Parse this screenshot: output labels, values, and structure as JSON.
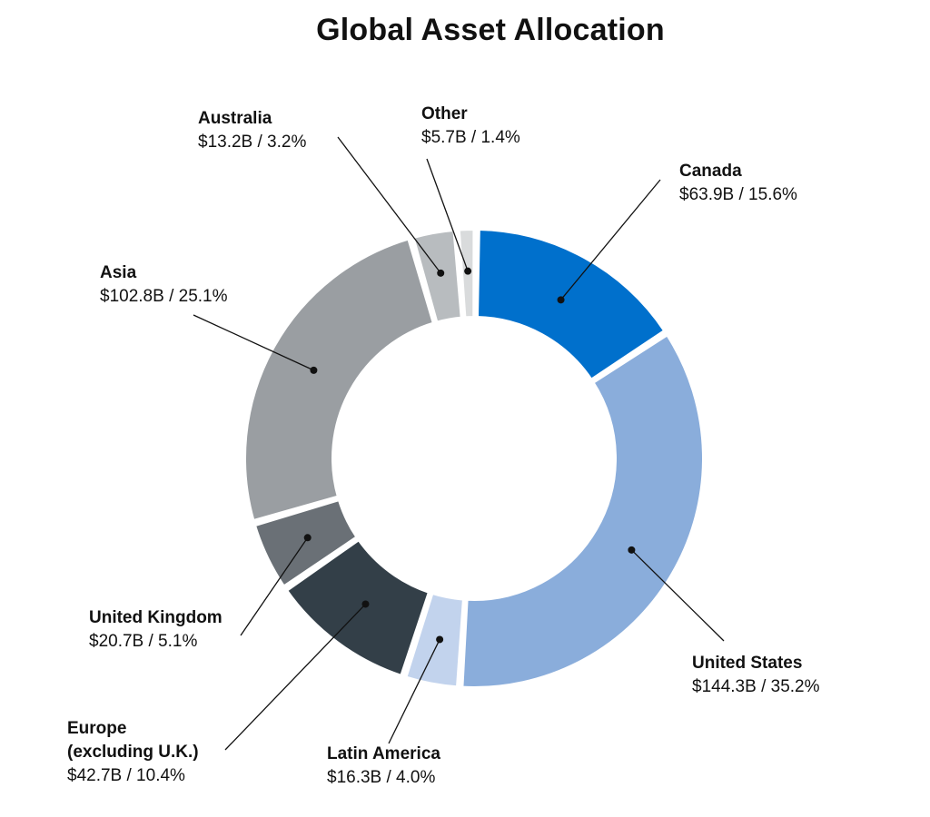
{
  "chart_data": {
    "type": "donut",
    "title": "Global Asset Allocation",
    "slices": [
      {
        "label": "Canada",
        "value_text": "$63.9B / 15.6%",
        "amount": 63.9,
        "percent": 15.6,
        "color": "#0070cc"
      },
      {
        "label": "United States",
        "value_text": "$144.3B / 35.2%",
        "amount": 144.3,
        "percent": 35.2,
        "color": "#8aaddb"
      },
      {
        "label": "Latin America",
        "value_text": "$16.3B / 4.0%",
        "amount": 16.3,
        "percent": 4.0,
        "color": "#c2d3ed"
      },
      {
        "label": "Europe\n(excluding U.K.)",
        "value_text": "$42.7B / 10.4%",
        "amount": 42.7,
        "percent": 10.4,
        "color": "#333f48"
      },
      {
        "label": "United Kingdom",
        "value_text": "$20.7B / 5.1%",
        "amount": 20.7,
        "percent": 5.1,
        "color": "#6a7076"
      },
      {
        "label": "Asia",
        "value_text": "$102.8B / 25.1%",
        "amount": 102.8,
        "percent": 25.1,
        "color": "#9a9ea2"
      },
      {
        "label": "Australia",
        "value_text": "$13.2B / 3.2%",
        "amount": 13.2,
        "percent": 3.2,
        "color": "#b8bcbf"
      },
      {
        "label": "Other",
        "value_text": "$5.7B / 1.4%",
        "amount": 5.7,
        "percent": 1.4,
        "color": "#d9dbdc"
      }
    ]
  }
}
